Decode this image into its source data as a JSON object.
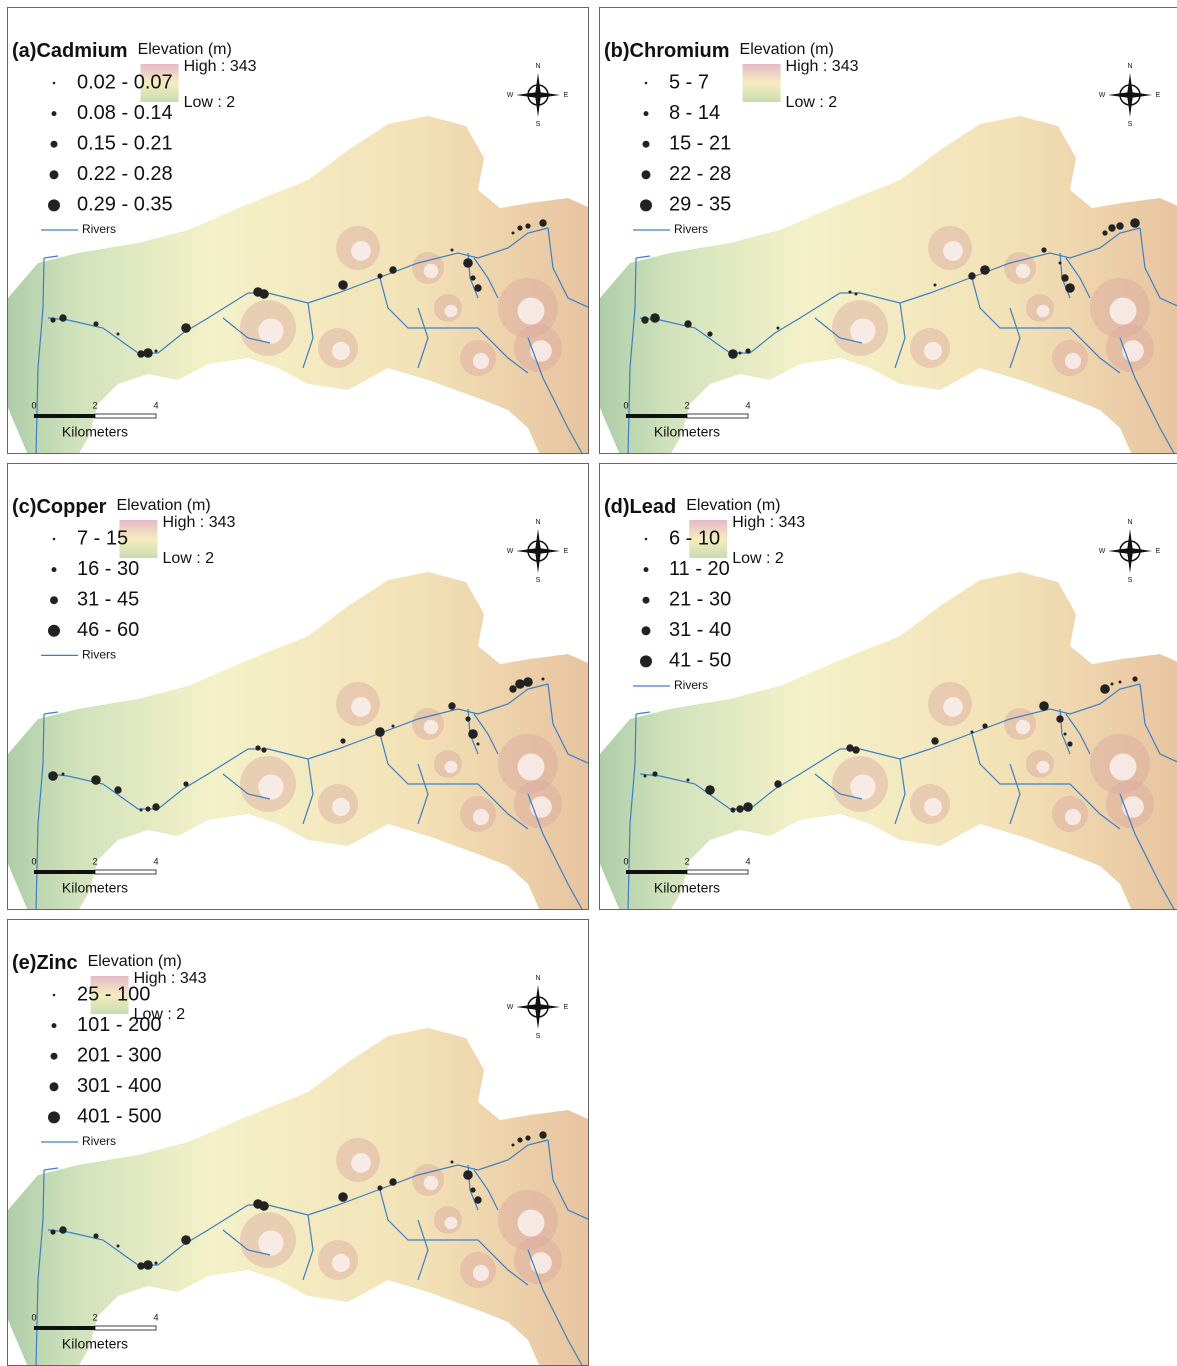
{
  "panels": [
    {
      "label": "(a)",
      "name": "Cadmium",
      "classes": [
        "0.02 - 0.07",
        "0.08 - 0.14",
        "0.15 - 0.21",
        "0.22 - 0.28",
        "0.29 - 0.35"
      ],
      "elevation_title": "Elevation (m)",
      "high": "High : 343",
      "low": "Low : 2",
      "rivers": "Rivers",
      "compass": {
        "n": "N",
        "s": "S",
        "e": "E",
        "w": "W"
      },
      "scale_labels": [
        "0",
        "2",
        "4"
      ],
      "scale_unit": "Kilometers"
    },
    {
      "label": "(b)",
      "name": "Chromium",
      "classes": [
        "5 - 7",
        "8 - 14",
        "15 - 21",
        "22 - 28",
        "29 - 35"
      ],
      "elevation_title": "Elevation (m)",
      "high": "High : 343",
      "low": "Low : 2",
      "rivers": "Rivers",
      "compass": {
        "n": "N",
        "s": "S",
        "e": "E",
        "w": "W"
      },
      "scale_labels": [
        "0",
        "2",
        "4"
      ],
      "scale_unit": "Kilometers"
    },
    {
      "label": "(c)",
      "name": "Copper",
      "classes": [
        "7 - 15",
        "16 - 30",
        "31 - 45",
        "46 - 60"
      ],
      "elevation_title": "Elevation (m)",
      "high": "High : 343",
      "low": "Low : 2",
      "rivers": "Rivers",
      "compass": {
        "n": "N",
        "s": "S",
        "e": "E",
        "w": "W"
      },
      "scale_labels": [
        "0",
        "2",
        "4"
      ],
      "scale_unit": "Kilometers"
    },
    {
      "label": "(d)",
      "name": "Lead",
      "classes": [
        "6 - 10",
        "11 - 20",
        "21 - 30",
        "31 - 40",
        "41 - 50"
      ],
      "elevation_title": "Elevation (m)",
      "high": "High : 343",
      "low": "Low : 2",
      "rivers": "Rivers",
      "compass": {
        "n": "N",
        "s": "S",
        "e": "E",
        "w": "W"
      },
      "scale_labels": [
        "0",
        "2",
        "4"
      ],
      "scale_unit": "Kilometers"
    },
    {
      "label": "(e)",
      "name": "Zinc",
      "classes": [
        "25 - 100",
        "101 - 200",
        "201 - 300",
        "301 - 400",
        "401 - 500"
      ],
      "elevation_title": "Elevation (m)",
      "high": "High : 343",
      "low": "Low : 2",
      "rivers": "Rivers",
      "compass": {
        "n": "N",
        "s": "S",
        "e": "E",
        "w": "W"
      },
      "scale_labels": [
        "0",
        "2",
        "4"
      ],
      "scale_unit": "Kilometers"
    }
  ]
}
